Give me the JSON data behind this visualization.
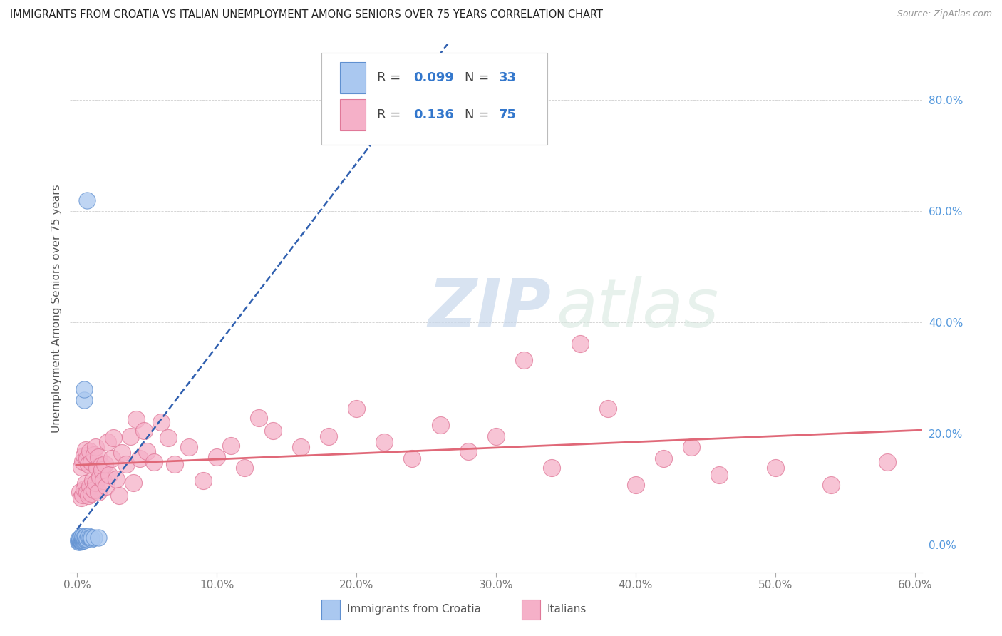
{
  "title": "IMMIGRANTS FROM CROATIA VS ITALIAN UNEMPLOYMENT AMONG SENIORS OVER 75 YEARS CORRELATION CHART",
  "source": "Source: ZipAtlas.com",
  "ylabel": "Unemployment Among Seniors over 75 years",
  "xlim": [
    -0.005,
    0.605
  ],
  "ylim": [
    -0.05,
    0.9
  ],
  "xticks": [
    0.0,
    0.1,
    0.2,
    0.3,
    0.4,
    0.5,
    0.6
  ],
  "xticklabels": [
    "0.0%",
    "10.0%",
    "20.0%",
    "30.0%",
    "40.0%",
    "50.0%",
    "60.0%"
  ],
  "yticks": [
    0.0,
    0.2,
    0.4,
    0.6,
    0.8
  ],
  "yticklabels": [
    "0.0%",
    "20.0%",
    "40.0%",
    "60.0%",
    "80.0%"
  ],
  "series1_label": "Immigrants from Croatia",
  "series2_label": "Italians",
  "series1_color": "#aac8f0",
  "series2_color": "#f5b0c8",
  "series1_edge": "#6090d0",
  "series2_edge": "#e07898",
  "trendline1_color": "#3060b0",
  "trendline2_color": "#e06878",
  "background_color": "#ffffff",
  "watermark_zip": "ZIP",
  "watermark_atlas": "atlas",
  "grid_color": "#d0d0d0",
  "ytick_color": "#5599dd",
  "xtick_color": "#777777",
  "ylabel_color": "#555555",
  "legend_r1": "0.099",
  "legend_n1": "33",
  "legend_r2": "0.136",
  "legend_n2": "75",
  "croatia_x": [
    0.001,
    0.001,
    0.001,
    0.002,
    0.002,
    0.002,
    0.002,
    0.003,
    0.003,
    0.003,
    0.003,
    0.003,
    0.004,
    0.004,
    0.004,
    0.004,
    0.005,
    0.005,
    0.005,
    0.005,
    0.005,
    0.006,
    0.006,
    0.006,
    0.007,
    0.007,
    0.008,
    0.008,
    0.009,
    0.01,
    0.01,
    0.012,
    0.015
  ],
  "croatia_y": [
    0.005,
    0.008,
    0.01,
    0.005,
    0.007,
    0.009,
    0.011,
    0.006,
    0.008,
    0.01,
    0.012,
    0.015,
    0.007,
    0.01,
    0.012,
    0.015,
    0.008,
    0.01,
    0.012,
    0.26,
    0.28,
    0.01,
    0.012,
    0.015,
    0.01,
    0.62,
    0.012,
    0.015,
    0.012,
    0.01,
    0.012,
    0.013,
    0.013
  ],
  "italians_x": [
    0.002,
    0.003,
    0.003,
    0.004,
    0.004,
    0.005,
    0.005,
    0.006,
    0.006,
    0.007,
    0.007,
    0.008,
    0.008,
    0.009,
    0.009,
    0.01,
    0.01,
    0.011,
    0.012,
    0.012,
    0.013,
    0.013,
    0.014,
    0.015,
    0.015,
    0.016,
    0.017,
    0.018,
    0.019,
    0.02,
    0.021,
    0.022,
    0.023,
    0.025,
    0.026,
    0.028,
    0.03,
    0.032,
    0.035,
    0.038,
    0.04,
    0.042,
    0.045,
    0.048,
    0.05,
    0.055,
    0.06,
    0.065,
    0.07,
    0.08,
    0.09,
    0.1,
    0.11,
    0.12,
    0.13,
    0.14,
    0.16,
    0.18,
    0.2,
    0.22,
    0.24,
    0.26,
    0.28,
    0.3,
    0.32,
    0.34,
    0.36,
    0.38,
    0.4,
    0.42,
    0.44,
    0.46,
    0.5,
    0.54,
    0.58
  ],
  "italians_y": [
    0.095,
    0.085,
    0.14,
    0.09,
    0.15,
    0.1,
    0.16,
    0.11,
    0.17,
    0.095,
    0.155,
    0.088,
    0.145,
    0.105,
    0.168,
    0.092,
    0.148,
    0.115,
    0.098,
    0.162,
    0.175,
    0.112,
    0.138,
    0.095,
    0.158,
    0.122,
    0.142,
    0.135,
    0.115,
    0.145,
    0.105,
    0.185,
    0.125,
    0.155,
    0.192,
    0.118,
    0.088,
    0.165,
    0.145,
    0.195,
    0.112,
    0.225,
    0.155,
    0.205,
    0.168,
    0.148,
    0.22,
    0.192,
    0.145,
    0.175,
    0.115,
    0.158,
    0.178,
    0.138,
    0.228,
    0.205,
    0.175,
    0.195,
    0.245,
    0.185,
    0.155,
    0.215,
    0.168,
    0.195,
    0.332,
    0.138,
    0.362,
    0.245,
    0.108,
    0.155,
    0.175,
    0.125,
    0.138,
    0.108,
    0.148
  ]
}
